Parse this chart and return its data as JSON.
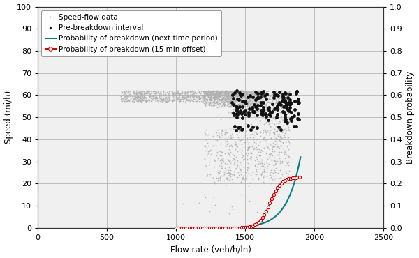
{
  "title": "",
  "xlabel": "Flow rate (veh/h/ln)",
  "ylabel_left": "Speed (mi/h)",
  "ylabel_right": "Breakdown probability",
  "xlim": [
    0,
    2500
  ],
  "ylim_left": [
    0,
    100
  ],
  "ylim_right": [
    0,
    1.0
  ],
  "xticks": [
    0,
    500,
    1000,
    1500,
    2000,
    2500
  ],
  "yticks_left": [
    0,
    10,
    20,
    30,
    40,
    50,
    60,
    70,
    80,
    90,
    100
  ],
  "yticks_right": [
    0.0,
    0.1,
    0.2,
    0.3,
    0.4,
    0.5,
    0.6,
    0.7,
    0.8,
    0.9,
    1.0
  ],
  "speed_flow_color": "#b0b0b0",
  "pre_breakdown_color": "#111111",
  "prob_next_color": "#008080",
  "prob_15min_color": "#cc0000",
  "bg_color": "#f0f0f0"
}
